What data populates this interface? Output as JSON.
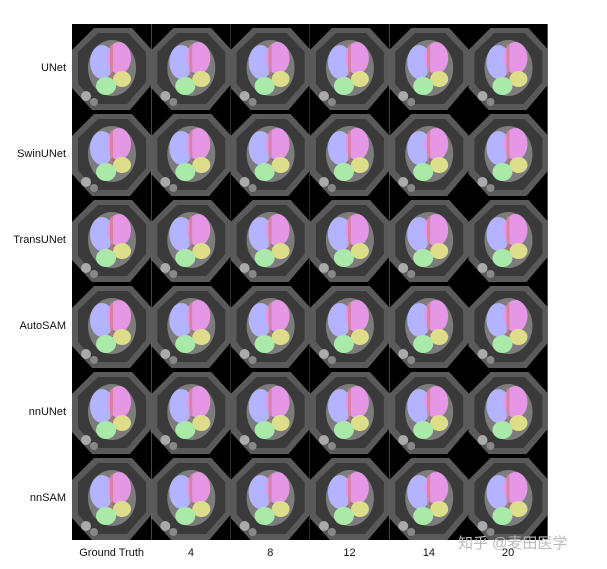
{
  "figure": {
    "rows": [
      "UNet",
      "SwinUNet",
      "TransUNet",
      "AutoSAM",
      "nnUNet",
      "nnSAM"
    ],
    "columns": [
      "Ground Truth",
      "4",
      "8",
      "12",
      "14",
      "20"
    ]
  },
  "watermark": "知乎 @麦田医学"
}
